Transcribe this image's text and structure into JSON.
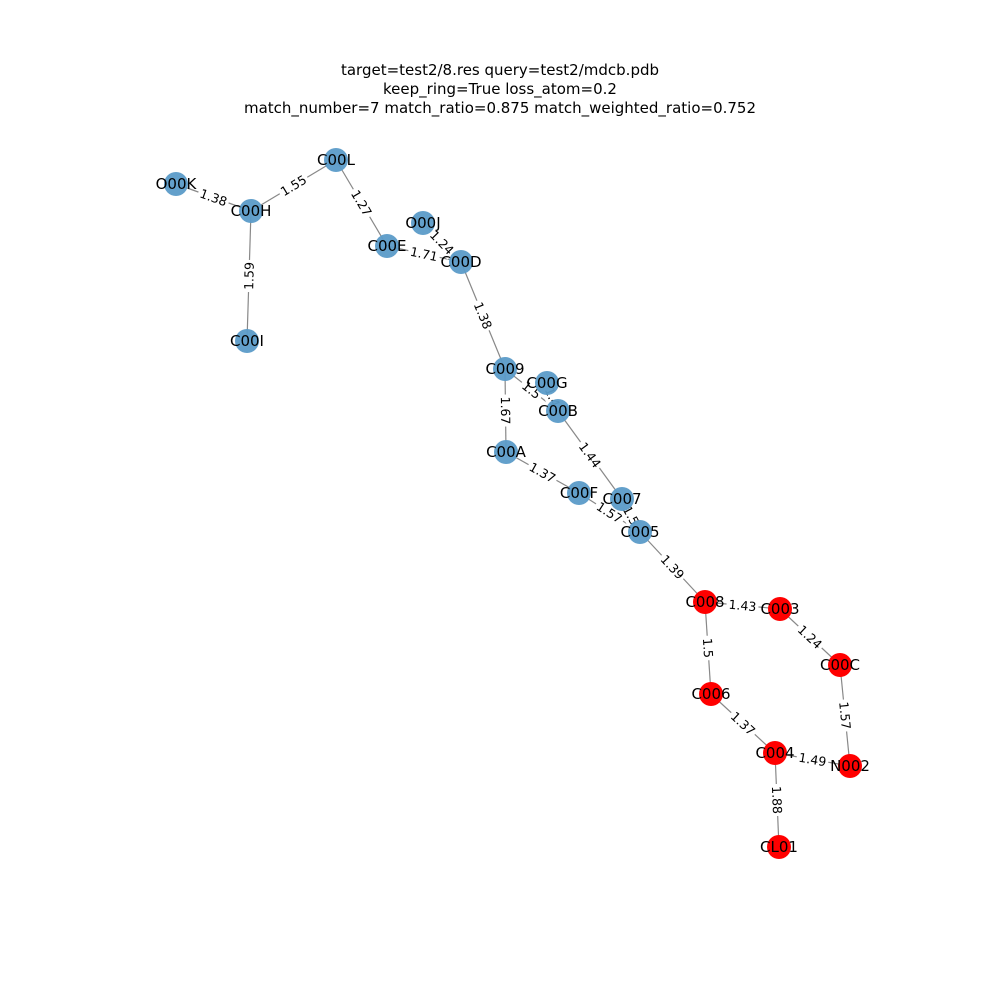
{
  "title": {
    "line1": "target=test2/8.res query=test2/mdcb.pdb",
    "line2": "keep_ring=True loss_atom=0.2",
    "line3": "match_number=7 match_ratio=0.875 match_weighted_ratio=0.752"
  },
  "colors": {
    "unmatched": "#5b9bc8",
    "matched": "#ff0000",
    "edge": "#888888"
  },
  "nodes": [
    {
      "id": "C00L",
      "label": "C00L",
      "matched": false
    },
    {
      "id": "O00K",
      "label": "O00K",
      "matched": false
    },
    {
      "id": "C00H",
      "label": "C00H",
      "matched": false
    },
    {
      "id": "C00I",
      "label": "C00I",
      "matched": false
    },
    {
      "id": "O00J",
      "label": "O00J",
      "matched": false
    },
    {
      "id": "C00E",
      "label": "C00E",
      "matched": false
    },
    {
      "id": "C00D",
      "label": "C00D",
      "matched": false
    },
    {
      "id": "C009",
      "label": "C009",
      "matched": false
    },
    {
      "id": "C00G",
      "label": "C00G",
      "matched": false
    },
    {
      "id": "C00B",
      "label": "C00B",
      "matched": false
    },
    {
      "id": "C00A",
      "label": "C00A",
      "matched": false
    },
    {
      "id": "C00F",
      "label": "C00F",
      "matched": false
    },
    {
      "id": "C007",
      "label": "C007",
      "matched": false
    },
    {
      "id": "C005",
      "label": "C005",
      "matched": false
    },
    {
      "id": "C008",
      "label": "C008",
      "matched": true
    },
    {
      "id": "C003",
      "label": "C003",
      "matched": true
    },
    {
      "id": "C00C",
      "label": "C00C",
      "matched": true
    },
    {
      "id": "C006",
      "label": "C006",
      "matched": true
    },
    {
      "id": "C004",
      "label": "C004",
      "matched": true
    },
    {
      "id": "N002",
      "label": "N002",
      "matched": true
    },
    {
      "id": "CL01",
      "label": "CL01",
      "matched": true
    }
  ],
  "edges": [
    {
      "source": "O00K",
      "target": "C00H",
      "label": "1.38"
    },
    {
      "source": "C00H",
      "target": "C00L",
      "label": "1.55"
    },
    {
      "source": "C00L",
      "target": "C00E",
      "label": "1.27"
    },
    {
      "source": "C00H",
      "target": "C00I",
      "label": "1.59"
    },
    {
      "source": "O00J",
      "target": "C00D",
      "label": "1.24"
    },
    {
      "source": "C00E",
      "target": "C00D",
      "label": "1.71"
    },
    {
      "source": "C00D",
      "target": "C009",
      "label": "1.38"
    },
    {
      "source": "C009",
      "target": "C00B",
      "label": "1.5"
    },
    {
      "source": "C00G",
      "target": "C00B",
      "label": "1.4"
    },
    {
      "source": "C009",
      "target": "C00A",
      "label": "1.67"
    },
    {
      "source": "C00B",
      "target": "C007",
      "label": "1.44"
    },
    {
      "source": "C00A",
      "target": "C00F",
      "label": "1.37"
    },
    {
      "source": "C00F",
      "target": "C005",
      "label": "1.57"
    },
    {
      "source": "C007",
      "target": "C005",
      "label": "1.5"
    },
    {
      "source": "C005",
      "target": "C008",
      "label": "1.39"
    },
    {
      "source": "C008",
      "target": "C003",
      "label": "1.43"
    },
    {
      "source": "C003",
      "target": "C00C",
      "label": "1.24"
    },
    {
      "source": "C008",
      "target": "C006",
      "label": "1.5"
    },
    {
      "source": "C00C",
      "target": "N002",
      "label": "1.57"
    },
    {
      "source": "C006",
      "target": "C004",
      "label": "1.37"
    },
    {
      "source": "C004",
      "target": "N002",
      "label": "1.49"
    },
    {
      "source": "C004",
      "target": "CL01",
      "label": "1.88"
    }
  ]
}
